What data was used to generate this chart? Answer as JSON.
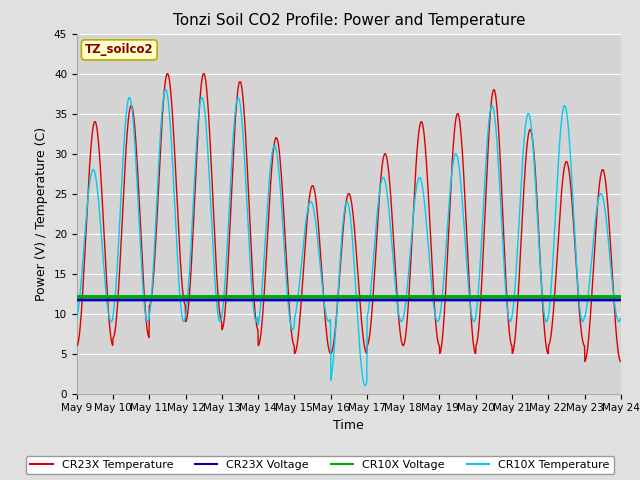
{
  "title": "Tonzi Soil CO2 Profile: Power and Temperature",
  "xlabel": "Time",
  "ylabel": "Power (V) / Temperature (C)",
  "ylim": [
    0,
    45
  ],
  "cr23x_voltage_value": 11.7,
  "cr10x_voltage_value": 12.1,
  "cr23x_temp_color": "#dd0000",
  "cr23x_volt_color": "#0000bb",
  "cr10x_volt_color": "#00aa00",
  "cr10x_temp_color": "#00ccee",
  "bg_color": "#e0e0e0",
  "plot_bg_color": "#d4d4d4",
  "label_box_color": "#ffffcc",
  "label_box_edge": "#bbaa00",
  "label_text": "TZ_soilco2",
  "legend_labels": [
    "CR23X Temperature",
    "CR23X Voltage",
    "CR10X Voltage",
    "CR10X Temperature"
  ],
  "title_fontsize": 11,
  "axis_fontsize": 9,
  "tick_fontsize": 7.5,
  "cr23x_temp_maxes": [
    34,
    36,
    40,
    40,
    39,
    32,
    26,
    25,
    30,
    34,
    35,
    38,
    33,
    29,
    28
  ],
  "cr23x_temp_mins": [
    6,
    7,
    11,
    9,
    8,
    6,
    5,
    5,
    6,
    6,
    5,
    6,
    5,
    6,
    4
  ],
  "cr10x_temp_maxes": [
    28,
    37,
    38,
    37,
    37,
    31,
    24,
    24,
    27,
    27,
    30,
    36,
    35,
    36,
    25
  ],
  "cr10x_temp_mins": [
    9,
    9,
    9,
    9,
    9,
    8,
    9,
    1,
    9,
    9,
    9,
    9,
    9,
    9,
    9
  ],
  "cr23x_temp_phase": 0.25,
  "cr10x_temp_phase": 0.2
}
